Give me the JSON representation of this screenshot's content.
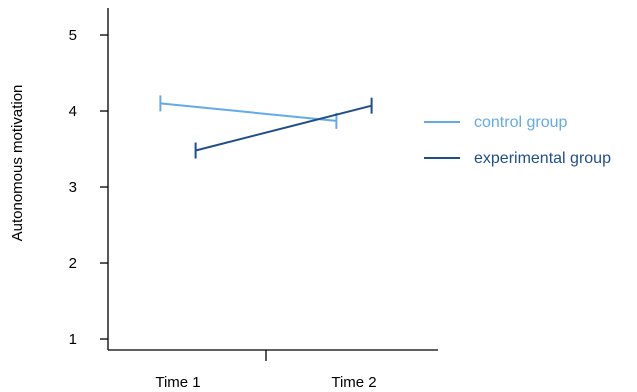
{
  "chart_data": {
    "type": "line",
    "title": "",
    "xlabel": "",
    "ylabel": "Autonomous motivation",
    "categories": [
      "Time 1",
      "Time 2"
    ],
    "ylim": [
      0.8,
      5.8
    ],
    "yticks": [
      1,
      2,
      3,
      4,
      5
    ],
    "grid": false,
    "legend_position": "right",
    "series": [
      {
        "name": "control group",
        "color": "#64aaeb",
        "values": [
          4.1,
          3.87
        ],
        "x_offset": -0.08
      },
      {
        "name": "experimental group",
        "color": "#1f4f8a",
        "values": [
          3.48,
          4.07
        ],
        "x_offset": 0.08
      }
    ]
  }
}
